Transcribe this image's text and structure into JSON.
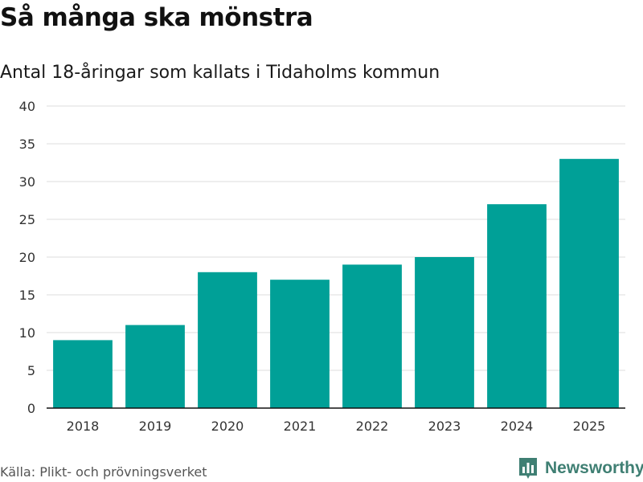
{
  "colors": {
    "bar": "#00a097",
    "grid": "#dcdcdc",
    "axis": "#111111",
    "brand": "#3f7f73"
  },
  "footer": {
    "source": "Källa: Plikt- och prövningsverket",
    "brand": "Newsworthy",
    "brand_icon": "bar-chart-logo-icon"
  },
  "chart_data": {
    "type": "bar",
    "title": "Så många ska mönstra",
    "subtitle": "Antal 18-åringar som kallats i Tidaholms kommun",
    "categories": [
      "2018",
      "2019",
      "2020",
      "2021",
      "2022",
      "2023",
      "2024",
      "2025"
    ],
    "values": [
      9,
      11,
      18,
      17,
      19,
      20,
      27,
      33
    ],
    "yticks": [
      0,
      5,
      10,
      15,
      20,
      25,
      30,
      35,
      40
    ],
    "ylim": [
      0,
      40
    ],
    "xlabel": "",
    "ylabel": ""
  }
}
